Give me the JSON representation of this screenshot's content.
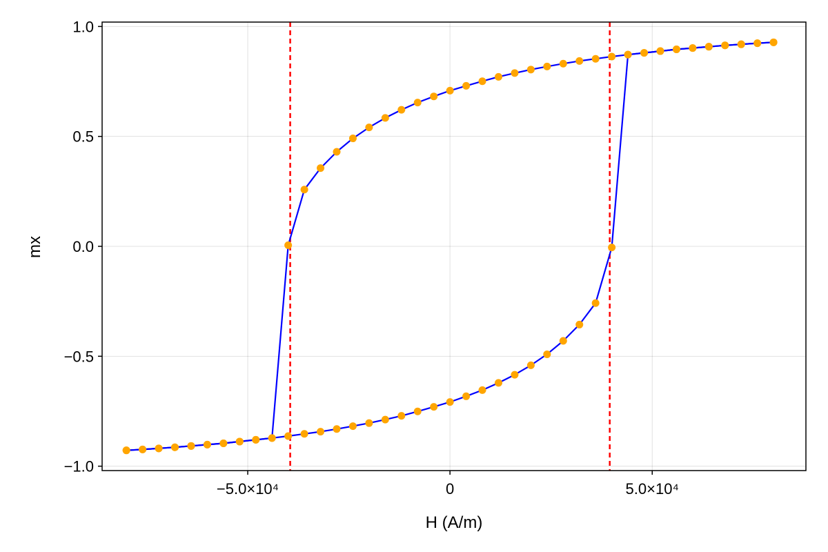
{
  "chart_data": {
    "type": "line",
    "title": "",
    "xlabel": "H (A/m)",
    "ylabel": "mx",
    "xlim": [
      -86000,
      88000
    ],
    "ylim": [
      -1.02,
      1.02
    ],
    "grid": true,
    "x_ticks": [
      {
        "value": -50000,
        "label": "−5.0×10⁴"
      },
      {
        "value": 0,
        "label": "0"
      },
      {
        "value": 50000,
        "label": "5.0×10⁴"
      }
    ],
    "y_ticks": [
      {
        "value": -1.0,
        "label": "−1.0"
      },
      {
        "value": -0.5,
        "label": "−0.5"
      },
      {
        "value": 0.0,
        "label": "0.0"
      },
      {
        "value": 0.5,
        "label": "0.5"
      },
      {
        "value": 1.0,
        "label": "1.0"
      }
    ],
    "vlines": [
      {
        "x": -39500,
        "color": "#ff0000",
        "style": "dashed"
      },
      {
        "x": 39500,
        "color": "#ff0000",
        "style": "dashed"
      }
    ],
    "series": [
      {
        "line_color": "#0000ff",
        "marker_color": "#ffa500",
        "x": [
          -80000,
          -76000,
          -72000,
          -68000,
          -64000,
          -60000,
          -56000,
          -52000,
          -48000,
          -44000,
          -40000,
          -36000,
          -32000,
          -28000,
          -24000,
          -20000,
          -16000,
          -12000,
          -8000,
          -4000,
          0,
          4000,
          8000,
          12000,
          16000,
          20000,
          24000,
          28000,
          32000,
          36000,
          40000,
          44000,
          48000,
          52000,
          56000,
          60000,
          64000,
          68000,
          72000,
          76000,
          80000
        ],
        "y": [
          -0.928,
          -0.924,
          -0.919,
          -0.914,
          -0.908,
          -0.902,
          -0.896,
          -0.888,
          -0.88,
          -0.872,
          -0.863,
          -0.853,
          -0.843,
          -0.831,
          -0.818,
          -0.804,
          -0.788,
          -0.771,
          -0.751,
          -0.73,
          -0.708,
          -0.682,
          -0.654,
          -0.621,
          -0.584,
          -0.541,
          -0.491,
          -0.43,
          -0.356,
          -0.258,
          -0.005,
          0.872,
          0.88,
          0.888,
          0.896,
          0.902,
          0.908,
          0.914,
          0.919,
          0.924,
          0.928
        ]
      },
      {
        "line_color": "#0000ff",
        "marker_color": "#ffa500",
        "x": [
          80000,
          76000,
          72000,
          68000,
          64000,
          60000,
          56000,
          52000,
          48000,
          44000,
          40000,
          36000,
          32000,
          28000,
          24000,
          20000,
          16000,
          12000,
          8000,
          4000,
          0,
          -4000,
          -8000,
          -12000,
          -16000,
          -20000,
          -24000,
          -28000,
          -32000,
          -36000,
          -40000,
          -44000,
          -48000,
          -52000,
          -56000,
          -60000,
          -64000,
          -68000,
          -72000,
          -76000,
          -80000
        ],
        "y": [
          0.928,
          0.924,
          0.919,
          0.914,
          0.908,
          0.902,
          0.896,
          0.888,
          0.88,
          0.872,
          0.863,
          0.853,
          0.843,
          0.831,
          0.818,
          0.804,
          0.788,
          0.771,
          0.751,
          0.73,
          0.708,
          0.682,
          0.654,
          0.621,
          0.584,
          0.541,
          0.491,
          0.43,
          0.356,
          0.258,
          0.005,
          -0.872,
          -0.88,
          -0.888,
          -0.896,
          -0.902,
          -0.908,
          -0.914,
          -0.919,
          -0.924,
          -0.928
        ]
      }
    ]
  }
}
